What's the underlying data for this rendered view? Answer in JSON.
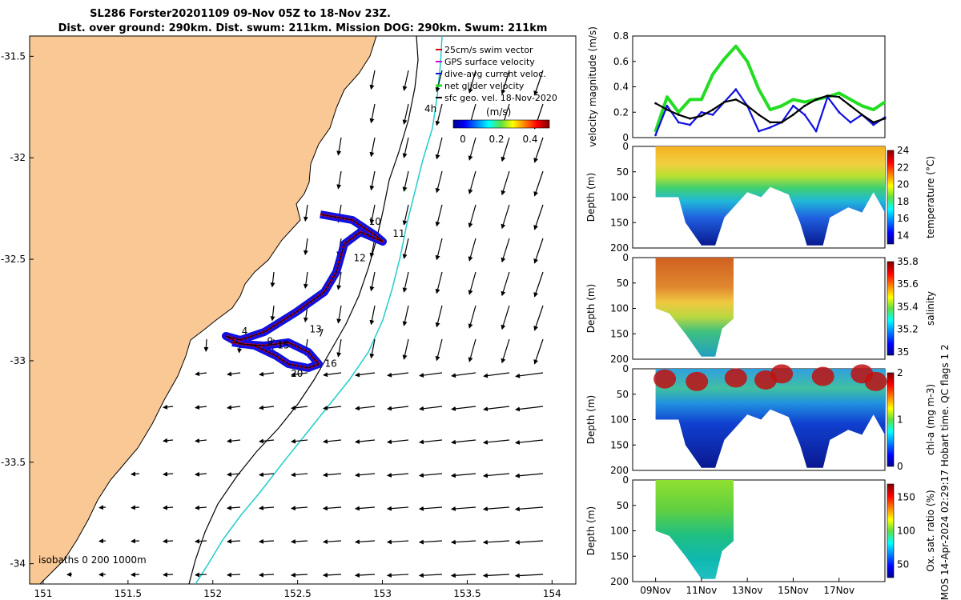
{
  "title_line1": "SL286 Forster20201109 09-Nov 05Z to 18-Nov 23Z.",
  "title_line2": "Dist. over ground: 290km. Dist. swum: 211km. Mission DOG: 290km. Swum: 211km",
  "credit": "© IMOS 14-Apr-2024 02:29:17 Hobart time. QC flags 1  2",
  "colors": {
    "land": "#f9c895",
    "swim_vector": "#e00000",
    "gps_velocity": "#d000d0",
    "current": "#1010e0",
    "glider": "#22dd22",
    "geo": "#000000",
    "isobath_200": "#000000",
    "isobath_1000": "#22cccc"
  },
  "map": {
    "lon_ticks": [
      "151",
      "151.5",
      "152",
      "152.5",
      "153",
      "153.5",
      "154"
    ],
    "lat_ticks": [
      "-31.5",
      "-32",
      "-32.5",
      "-33",
      "-33.5",
      "-34"
    ],
    "legend": [
      {
        "label": "25cm/s swim vector",
        "color_key": "swim_vector"
      },
      {
        "label": "GPS surface velocity",
        "color_key": "gps_velocity"
      },
      {
        "label": "dive-avg current veloc.",
        "color_key": "current"
      },
      {
        "label": "net glider velocity",
        "color_key": "glider"
      },
      {
        "label": "sfc geo. vel. 18-Nov-2020",
        "color_key": "geo"
      }
    ],
    "vector_label": "4h",
    "colorbar_unit": "(m/s)",
    "colorbar_ticks": [
      "0",
      "0.2",
      "0.4"
    ],
    "isobaths_label": "isobaths 0  200  1000m",
    "day_labels": [
      {
        "text": "10",
        "lon": 152.92,
        "lat": -32.33
      },
      {
        "text": "11",
        "lon": 153.06,
        "lat": -32.39
      },
      {
        "text": "12",
        "lon": 152.83,
        "lat": -32.51
      },
      {
        "text": "13",
        "lon": 152.57,
        "lat": -32.86
      },
      {
        "text": "7",
        "lon": 152.62,
        "lat": -32.88
      },
      {
        "text": "4",
        "lon": 152.17,
        "lat": -32.87
      },
      {
        "text": "9",
        "lon": 152.32,
        "lat": -32.92
      },
      {
        "text": "15",
        "lon": 152.38,
        "lat": -32.94
      },
      {
        "text": "16",
        "lon": 152.66,
        "lat": -33.03
      },
      {
        "text": "20",
        "lon": 152.46,
        "lat": -33.08
      }
    ]
  },
  "chart_data": [
    {
      "type": "line",
      "ylabel": "velocity magnitude (m/s)",
      "ylim": [
        0,
        0.8
      ],
      "yticks": [
        "0",
        "0.2",
        "0.4",
        "0.6",
        "0.8"
      ],
      "x": [
        9,
        9.5,
        10,
        10.5,
        11,
        11.5,
        12,
        12.5,
        13,
        13.5,
        14,
        14.5,
        15,
        15.5,
        16,
        16.5,
        17,
        17.5,
        18,
        18.5,
        19
      ],
      "series": [
        {
          "name": "net glider velocity",
          "color_key": "glider",
          "values": [
            0.05,
            0.32,
            0.2,
            0.3,
            0.3,
            0.5,
            0.62,
            0.72,
            0.6,
            0.38,
            0.22,
            0.25,
            0.3,
            0.28,
            0.3,
            0.32,
            0.35,
            0.3,
            0.25,
            0.22,
            0.28
          ]
        },
        {
          "name": "dive-avg current veloc.",
          "color_key": "current",
          "values": [
            0.02,
            0.25,
            0.12,
            0.1,
            0.2,
            0.18,
            0.28,
            0.38,
            0.25,
            0.05,
            0.08,
            0.12,
            0.25,
            0.18,
            0.05,
            0.32,
            0.2,
            0.12,
            0.18,
            0.1,
            0.16
          ]
        },
        {
          "name": "sfc geo. vel. 18-Nov-2020",
          "color_key": "geo",
          "values": [
            0.27,
            0.22,
            0.18,
            0.15,
            0.17,
            0.22,
            0.28,
            0.3,
            0.25,
            0.18,
            0.12,
            0.12,
            0.18,
            0.25,
            0.3,
            0.33,
            0.32,
            0.25,
            0.18,
            0.12,
            0.15
          ]
        }
      ]
    },
    {
      "type": "heatmap",
      "variable": "temperature",
      "ylabel": "Depth (m)",
      "colorbar_label": "temperature (°C)",
      "ylim": [
        200,
        0
      ],
      "yticks": [
        "0",
        "50",
        "100",
        "150",
        "200"
      ],
      "clim": [
        13,
        24
      ],
      "colorbar_ticks": [
        "14",
        "16",
        "18",
        "20",
        "22",
        "24"
      ],
      "x_start": 9,
      "x_end": 19,
      "max_depth_profile": [
        [
          9,
          100
        ],
        [
          10,
          100
        ],
        [
          10.3,
          150
        ],
        [
          11,
          195
        ],
        [
          11.6,
          195
        ],
        [
          12,
          140
        ],
        [
          13,
          90
        ],
        [
          13.6,
          100
        ],
        [
          14,
          80
        ],
        [
          14.8,
          95
        ],
        [
          15.3,
          150
        ],
        [
          15.6,
          195
        ],
        [
          16.3,
          195
        ],
        [
          16.6,
          140
        ],
        [
          17.4,
          120
        ],
        [
          18,
          130
        ],
        [
          18.5,
          90
        ],
        [
          19,
          130
        ]
      ]
    },
    {
      "type": "heatmap",
      "variable": "salinity",
      "ylabel": "Depth (m)",
      "colorbar_label": "salinity",
      "ylim": [
        200,
        0
      ],
      "yticks": [
        "0",
        "50",
        "100",
        "150",
        "200"
      ],
      "clim": [
        34.97,
        35.8
      ],
      "colorbar_ticks": [
        "35",
        "35.2",
        "35.4",
        "35.6",
        "35.8"
      ],
      "x_start": 9,
      "x_end": 12.4,
      "max_depth_profile": [
        [
          9,
          100
        ],
        [
          9.6,
          110
        ],
        [
          10.3,
          150
        ],
        [
          11,
          195
        ],
        [
          11.6,
          195
        ],
        [
          11.9,
          140
        ],
        [
          12.4,
          120
        ]
      ]
    },
    {
      "type": "heatmap",
      "variable": "chl-a",
      "ylabel": "Depth (m)",
      "colorbar_label": "chl-a (mg m-3)",
      "ylim": [
        200,
        0
      ],
      "yticks": [
        "0",
        "50",
        "100",
        "150",
        "200"
      ],
      "clim": [
        0,
        2
      ],
      "colorbar_ticks": [
        "0",
        "1",
        "2"
      ],
      "x_start": 9,
      "x_end": 19,
      "max_depth_profile": [
        [
          9,
          100
        ],
        [
          10,
          100
        ],
        [
          10.3,
          150
        ],
        [
          11,
          195
        ],
        [
          11.6,
          195
        ],
        [
          12,
          140
        ],
        [
          13,
          90
        ],
        [
          13.6,
          100
        ],
        [
          14,
          80
        ],
        [
          14.8,
          95
        ],
        [
          15.3,
          150
        ],
        [
          15.6,
          195
        ],
        [
          16.3,
          195
        ],
        [
          16.6,
          140
        ],
        [
          17.4,
          120
        ],
        [
          18,
          130
        ],
        [
          18.5,
          90
        ],
        [
          19,
          130
        ]
      ]
    },
    {
      "type": "heatmap",
      "variable": "Ox. sat. ratio",
      "ylabel": "Depth (m)",
      "colorbar_label": "Ox. sat. ratio (%)",
      "ylim": [
        200,
        0
      ],
      "yticks": [
        "0",
        "50",
        "100",
        "150",
        "200"
      ],
      "clim": [
        30,
        170
      ],
      "colorbar_ticks": [
        "50",
        "100",
        "150"
      ],
      "x_start": 9,
      "x_end": 12.4,
      "max_depth_profile": [
        [
          9,
          100
        ],
        [
          9.6,
          110
        ],
        [
          10.3,
          150
        ],
        [
          11,
          195
        ],
        [
          11.6,
          195
        ],
        [
          11.9,
          140
        ],
        [
          12.4,
          120
        ]
      ]
    }
  ],
  "time_axis": {
    "xlim": [
      8,
      19
    ],
    "ticks": [
      {
        "label": "09Nov",
        "day": 9
      },
      {
        "label": "11Nov",
        "day": 11
      },
      {
        "label": "13Nov",
        "day": 13
      },
      {
        "label": "15Nov",
        "day": 15
      },
      {
        "label": "17Nov",
        "day": 17
      }
    ]
  }
}
